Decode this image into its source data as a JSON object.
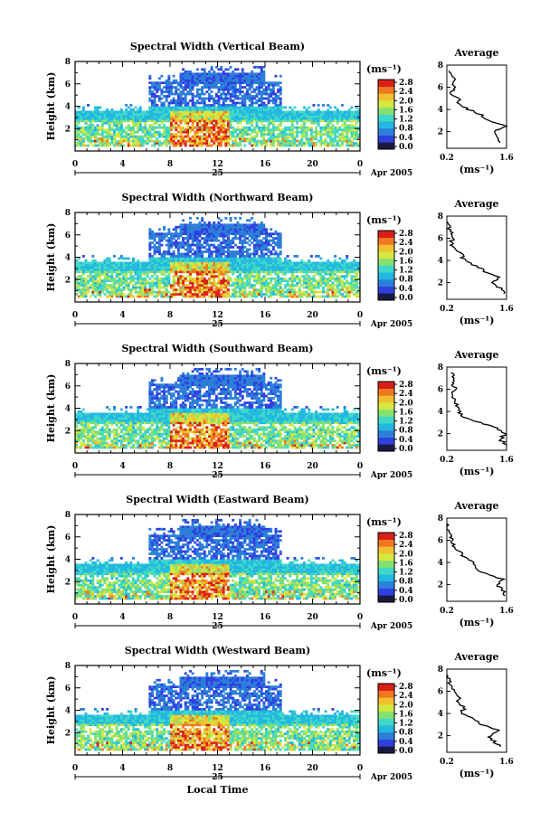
{
  "chart_data": [
    {
      "type": "heatmap",
      "title": "Spectral Width (Vertical Beam)",
      "beam": "vertical",
      "ylabel": "Height (km)",
      "xlim": [
        0,
        24
      ],
      "ylim": [
        0,
        8
      ],
      "x_ticks": [
        "0",
        "4",
        "8",
        "12",
        "16",
        "20",
        "0"
      ],
      "y_ticks": [
        "2",
        "4",
        "6",
        "8"
      ],
      "date_tick": "25",
      "date_label": "Apr 2005",
      "colorbar": {
        "unit_label": "(ms⁻¹)",
        "ticks": [
          "0.0",
          "0.4",
          "0.8",
          "1.2",
          "1.6",
          "2.0",
          "2.4",
          "2.8"
        ],
        "colors": [
          "#1a1a40",
          "#3040e0",
          "#2c7fd8",
          "#22b8e0",
          "#3fd8c8",
          "#86e070",
          "#d4e840",
          "#f0c030",
          "#f07820",
          "#d82018"
        ]
      },
      "avg": {
        "title": "Average",
        "xlabel": "(ms⁻¹)",
        "x_ticks": [
          "0.2",
          "1.6"
        ],
        "y_ticks": [
          "2",
          "4",
          "6",
          "8"
        ],
        "profile": [
          [
            1.5,
            1.0
          ],
          [
            1.4,
            1.5
          ],
          [
            1.3,
            2.0
          ],
          [
            1.55,
            2.5
          ],
          [
            1.2,
            3.0
          ],
          [
            1.0,
            3.5
          ],
          [
            0.7,
            4.0
          ],
          [
            0.5,
            4.5
          ],
          [
            0.45,
            5.0
          ],
          [
            0.3,
            5.5
          ],
          [
            0.35,
            6.0
          ],
          [
            0.4,
            6.5
          ],
          [
            0.3,
            7.0
          ],
          [
            0.25,
            7.5
          ]
        ]
      }
    },
    {
      "type": "heatmap",
      "title": "Spectral Width (Northward Beam)",
      "beam": "northward",
      "ylabel": "Height (km)",
      "xlim": [
        0,
        24
      ],
      "ylim": [
        0,
        8
      ],
      "x_ticks": [
        "0",
        "4",
        "8",
        "12",
        "16",
        "20",
        "0"
      ],
      "y_ticks": [
        "2",
        "4",
        "6",
        "8"
      ],
      "date_tick": "25",
      "date_label": "Apr 2005",
      "colorbar": {
        "unit_label": "(ms⁻¹)",
        "ticks": [
          "0.0",
          "0.4",
          "0.8",
          "1.2",
          "1.6",
          "2.0",
          "2.4",
          "2.8"
        ],
        "colors": [
          "#1a1a40",
          "#3040e0",
          "#2c7fd8",
          "#22b8e0",
          "#3fd8c8",
          "#86e070",
          "#d4e840",
          "#f0c030",
          "#f07820",
          "#d82018"
        ]
      },
      "avg": {
        "title": "Average",
        "xlabel": "(ms⁻¹)",
        "x_ticks": [
          "0.2",
          "1.6"
        ],
        "y_ticks": [
          "2",
          "4",
          "6",
          "8"
        ],
        "profile": [
          [
            1.55,
            1.0
          ],
          [
            1.45,
            1.5
          ],
          [
            1.3,
            2.0
          ],
          [
            1.45,
            2.5
          ],
          [
            1.1,
            3.0
          ],
          [
            0.9,
            3.5
          ],
          [
            0.6,
            4.0
          ],
          [
            0.55,
            4.5
          ],
          [
            0.4,
            5.0
          ],
          [
            0.3,
            5.5
          ],
          [
            0.35,
            6.0
          ],
          [
            0.3,
            6.5
          ],
          [
            0.25,
            7.0
          ],
          [
            0.2,
            7.5
          ]
        ]
      }
    },
    {
      "type": "heatmap",
      "title": "Spectral Width (Southward Beam)",
      "beam": "southward",
      "ylabel": "Height (km)",
      "xlim": [
        0,
        24
      ],
      "ylim": [
        0,
        8
      ],
      "x_ticks": [
        "0",
        "4",
        "8",
        "12",
        "16",
        "20",
        "0"
      ],
      "y_ticks": [
        "2",
        "4",
        "6",
        "8"
      ],
      "date_tick": "25",
      "date_label": "Apr 2005",
      "colorbar": {
        "unit_label": "(ms⁻¹)",
        "ticks": [
          "0.0",
          "0.4",
          "0.8",
          "1.2",
          "1.6",
          "2.0",
          "2.4",
          "2.8"
        ],
        "colors": [
          "#1a1a40",
          "#3040e0",
          "#2c7fd8",
          "#22b8e0",
          "#3fd8c8",
          "#86e070",
          "#d4e840",
          "#f0c030",
          "#f07820",
          "#d82018"
        ]
      },
      "avg": {
        "title": "Average",
        "xlabel": "(ms⁻¹)",
        "x_ticks": [
          "0.2",
          "1.6"
        ],
        "y_ticks": [
          "2",
          "4",
          "6",
          "8"
        ],
        "profile": [
          [
            1.6,
            1.0
          ],
          [
            1.45,
            1.5
          ],
          [
            1.55,
            2.0
          ],
          [
            1.35,
            2.5
          ],
          [
            1.0,
            3.0
          ],
          [
            0.6,
            3.5
          ],
          [
            0.5,
            4.0
          ],
          [
            0.45,
            4.5
          ],
          [
            0.4,
            5.0
          ],
          [
            0.35,
            5.5
          ],
          [
            0.4,
            6.0
          ],
          [
            0.3,
            6.5
          ],
          [
            0.35,
            7.0
          ],
          [
            0.3,
            7.5
          ]
        ]
      }
    },
    {
      "type": "heatmap",
      "title": "Spectral Width (Eastward Beam)",
      "beam": "eastward",
      "ylabel": "Height (km)",
      "xlim": [
        0,
        24
      ],
      "ylim": [
        0,
        8
      ],
      "x_ticks": [
        "0",
        "4",
        "8",
        "12",
        "16",
        "20",
        "0"
      ],
      "y_ticks": [
        "2",
        "4",
        "6",
        "8"
      ],
      "date_tick": "25",
      "date_label": "Apr 2005",
      "colorbar": {
        "unit_label": "(ms⁻¹)",
        "ticks": [
          "0.0",
          "0.4",
          "0.8",
          "1.2",
          "1.6",
          "2.0",
          "2.4",
          "2.8"
        ],
        "colors": [
          "#1a1a40",
          "#3040e0",
          "#2c7fd8",
          "#22b8e0",
          "#3fd8c8",
          "#86e070",
          "#d4e840",
          "#f0c030",
          "#f07820",
          "#d82018"
        ]
      },
      "avg": {
        "title": "Average",
        "xlabel": "(ms⁻¹)",
        "x_ticks": [
          "0.2",
          "1.6"
        ],
        "y_ticks": [
          "2",
          "4",
          "6",
          "8"
        ],
        "profile": [
          [
            1.55,
            1.0
          ],
          [
            1.5,
            1.5
          ],
          [
            1.4,
            2.0
          ],
          [
            1.5,
            2.5
          ],
          [
            1.1,
            3.0
          ],
          [
            0.9,
            3.5
          ],
          [
            0.8,
            4.0
          ],
          [
            0.6,
            4.5
          ],
          [
            0.5,
            5.0
          ],
          [
            0.35,
            5.5
          ],
          [
            0.3,
            6.0
          ],
          [
            0.25,
            6.5
          ],
          [
            0.2,
            7.0
          ],
          [
            0.2,
            7.5
          ]
        ]
      }
    },
    {
      "type": "heatmap",
      "title": "Spectral Width (Westward Beam)",
      "beam": "westward",
      "ylabel": "Height (km)",
      "xlabel": "Local Time",
      "xlim": [
        0,
        24
      ],
      "ylim": [
        0,
        8
      ],
      "x_ticks": [
        "0",
        "4",
        "8",
        "12",
        "16",
        "20",
        "0"
      ],
      "y_ticks": [
        "2",
        "4",
        "6",
        "8"
      ],
      "date_tick": "25",
      "date_label": "Apr 2005",
      "colorbar": {
        "unit_label": "(ms⁻¹)",
        "ticks": [
          "0.0",
          "0.4",
          "0.8",
          "1.2",
          "1.6",
          "2.0",
          "2.4",
          "2.8"
        ],
        "colors": [
          "#1a1a40",
          "#3040e0",
          "#2c7fd8",
          "#22b8e0",
          "#3fd8c8",
          "#86e070",
          "#d4e840",
          "#f0c030",
          "#f07820",
          "#d82018"
        ]
      },
      "avg": {
        "title": "Average",
        "xlabel": "(ms⁻¹)",
        "x_ticks": [
          "0.2",
          "1.6"
        ],
        "y_ticks": [
          "2",
          "4",
          "6",
          "8"
        ],
        "profile": [
          [
            1.5,
            1.0
          ],
          [
            1.3,
            1.5
          ],
          [
            1.2,
            2.0
          ],
          [
            1.4,
            2.5
          ],
          [
            1.0,
            3.0
          ],
          [
            0.8,
            3.5
          ],
          [
            0.55,
            4.0
          ],
          [
            0.6,
            4.5
          ],
          [
            0.45,
            5.0
          ],
          [
            0.5,
            5.5
          ],
          [
            0.4,
            6.0
          ],
          [
            0.3,
            6.5
          ],
          [
            0.25,
            7.0
          ],
          [
            0.2,
            7.5
          ]
        ]
      }
    }
  ]
}
